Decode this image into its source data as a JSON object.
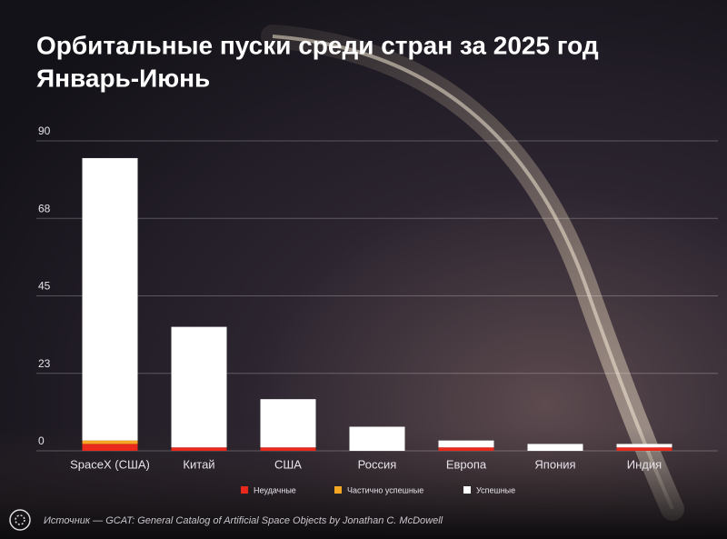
{
  "chart_data": {
    "type": "stacked_bar",
    "title": "Орбитальные пуски среди стран за 2025 год",
    "subtitle": "Январь-Июнь",
    "categories": [
      "SpaceX (США)",
      "Китай",
      "США",
      "Россия",
      "Европа",
      "Япония",
      "Индия"
    ],
    "series": [
      {
        "name": "Неудачные",
        "color": "#e8291c",
        "values": [
          2,
          1,
          1,
          0,
          1,
          0,
          1
        ]
      },
      {
        "name": "Частично успешные",
        "color": "#f5a623",
        "values": [
          1,
          0,
          0,
          0,
          0,
          0,
          0
        ]
      },
      {
        "name": "Успешные",
        "color": "#ffffff",
        "values": [
          82,
          35,
          14,
          7,
          2,
          2,
          1
        ]
      }
    ],
    "ylim": [
      0,
      90
    ],
    "yticks": [
      0,
      {
        "value": 22.5,
        "label": "23"
      },
      45,
      {
        "value": 67.5,
        "label": "68"
      },
      90
    ],
    "grid": true,
    "source": "Источник — GCAT: General Catalog of Artificial Space Objects by Jonathan C. McDowell"
  }
}
